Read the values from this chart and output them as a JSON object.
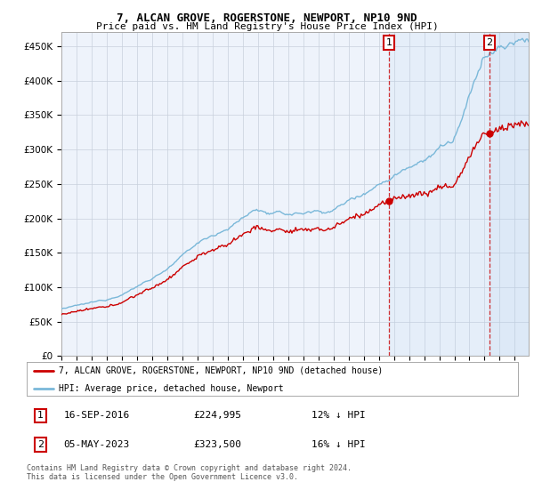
{
  "title_line1": "7, ALCAN GROVE, ROGERSTONE, NEWPORT, NP10 9ND",
  "title_line2": "Price paid vs. HM Land Registry's House Price Index (HPI)",
  "ylim": [
    0,
    470000
  ],
  "yticks": [
    0,
    50000,
    100000,
    150000,
    200000,
    250000,
    300000,
    350000,
    400000,
    450000
  ],
  "ytick_labels": [
    "£0",
    "£50K",
    "£100K",
    "£150K",
    "£200K",
    "£250K",
    "£300K",
    "£350K",
    "£400K",
    "£450K"
  ],
  "hpi_color": "#7ab8d9",
  "price_color": "#cc0000",
  "marker1_price": 224995,
  "marker1_date_str": "16-SEP-2016",
  "marker1_pct": "12% ↓ HPI",
  "marker2_price": 323500,
  "marker2_date_str": "05-MAY-2023",
  "marker2_pct": "16% ↓ HPI",
  "legend_label1": "7, ALCAN GROVE, ROGERSTONE, NEWPORT, NP10 9ND (detached house)",
  "legend_label2": "HPI: Average price, detached house, Newport",
  "footnote": "Contains HM Land Registry data © Crown copyright and database right 2024.\nThis data is licensed under the Open Government Licence v3.0.",
  "background_color": "#ffffff",
  "plot_bg_color": "#eef3fb",
  "grid_color": "#c8d0dc"
}
